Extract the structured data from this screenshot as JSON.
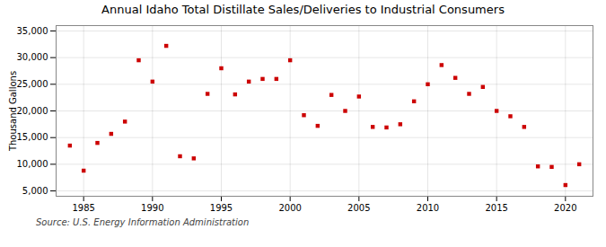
{
  "chart_data": {
    "type": "scatter",
    "title": "Annual Idaho Total Distillate Sales/Deliveries to Industrial Consumers",
    "ylabel": "Thousand Gallons",
    "source": "Source: U.S. Energy Information Administration",
    "x": [
      1984,
      1985,
      1986,
      1987,
      1988,
      1989,
      1990,
      1991,
      1992,
      1993,
      1994,
      1995,
      1996,
      1997,
      1998,
      1999,
      2000,
      2001,
      2002,
      2003,
      2004,
      2005,
      2006,
      2007,
      2008,
      2009,
      2010,
      2011,
      2012,
      2013,
      2014,
      2015,
      2016,
      2017,
      2018,
      2019,
      2020,
      2021
    ],
    "values": [
      13500,
      8800,
      14000,
      15700,
      18000,
      29500,
      25500,
      32200,
      11500,
      11100,
      23200,
      28000,
      23100,
      25500,
      26000,
      26000,
      29500,
      19200,
      17200,
      23000,
      20000,
      22700,
      17000,
      16900,
      17500,
      21800,
      25000,
      28600,
      26200,
      23200,
      24500,
      20000,
      19000,
      17000,
      9600,
      9500,
      6100,
      10000
    ],
    "color": "#cc0000",
    "marker": "square",
    "xlim": [
      1983,
      2022
    ],
    "ylim": [
      4000,
      36000
    ],
    "xticks": [
      1985,
      1990,
      1995,
      2000,
      2005,
      2010,
      2015,
      2020
    ],
    "yticks": [
      {
        "value": 5000,
        "label": "5,000"
      },
      {
        "value": 10000,
        "label": "10,000"
      },
      {
        "value": 15000,
        "label": "15,000"
      },
      {
        "value": 20000,
        "label": "20,000"
      },
      {
        "value": 25000,
        "label": "25,000"
      },
      {
        "value": 30000,
        "label": "30,000"
      },
      {
        "value": 35000,
        "label": "35,000"
      }
    ],
    "grid": true
  }
}
